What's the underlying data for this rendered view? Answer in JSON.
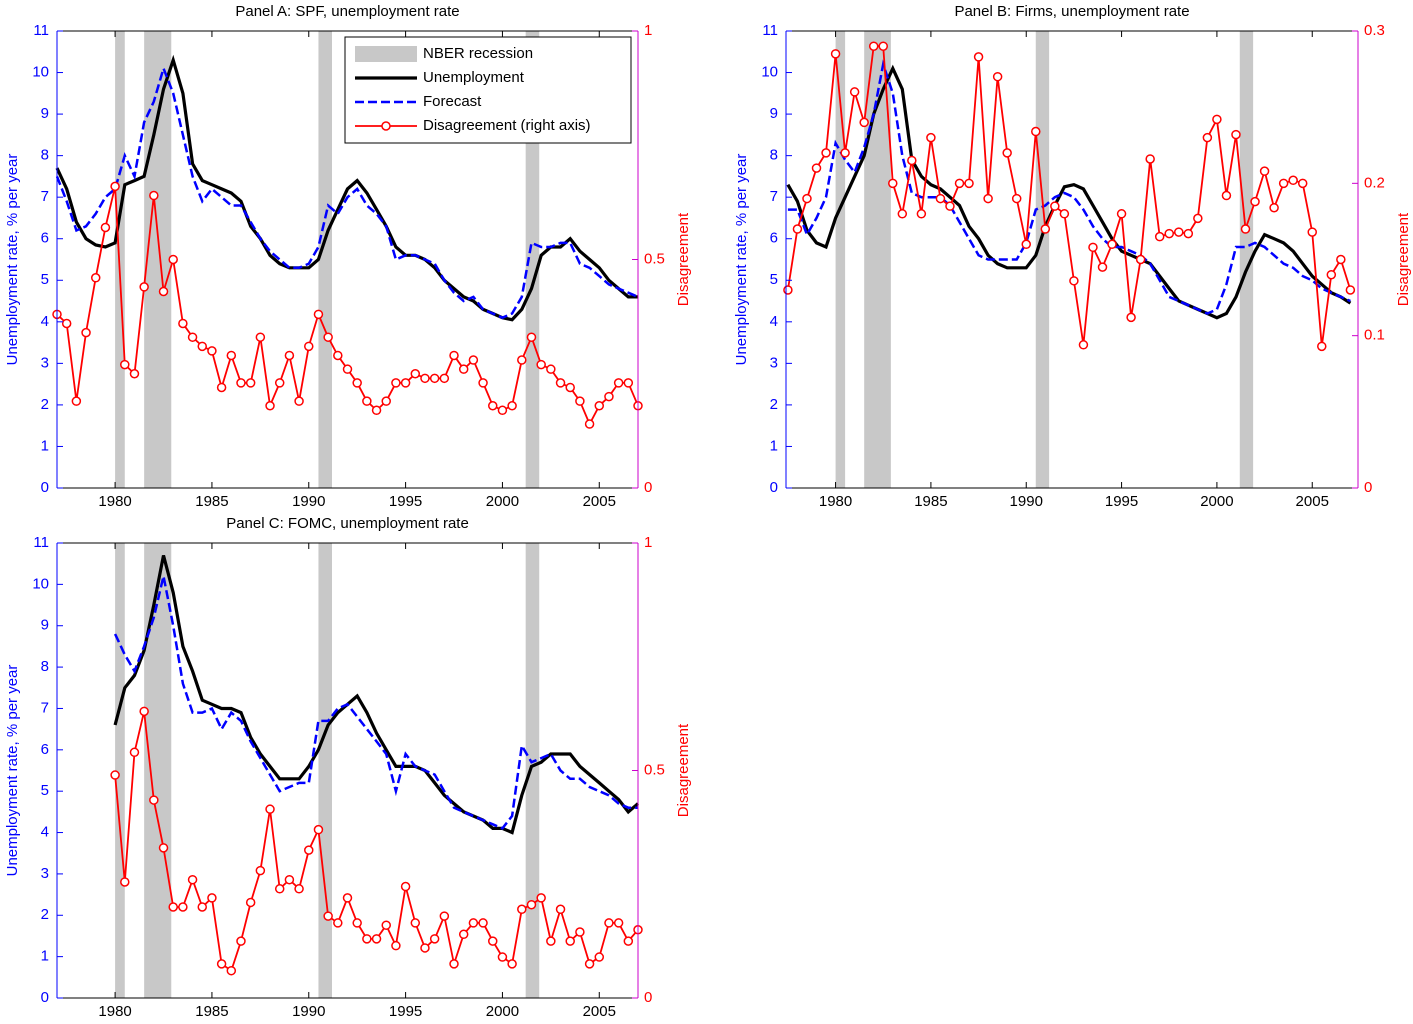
{
  "chart_data": [
    {
      "type": "line",
      "title": "Panel A: SPF, unemployment rate",
      "ylabel": "Unemployment rate, % per year",
      "y2label": "Disagreement",
      "xlim": [
        1977,
        2007
      ],
      "xticks": [
        1980,
        1985,
        1990,
        1995,
        2000,
        2005
      ],
      "ylim": [
        0,
        11
      ],
      "yticks": [
        0,
        1,
        2,
        3,
        4,
        5,
        6,
        7,
        8,
        9,
        10,
        11
      ],
      "y2lim": [
        0,
        1
      ],
      "y2ticks": [
        0,
        0.5,
        1
      ],
      "recession_label": "NBER recession",
      "recession_color": "#c8c8c8",
      "recessions": [
        [
          1980,
          1980.5
        ],
        [
          1981.5,
          1982.9
        ],
        [
          1990.5,
          1991.2
        ],
        [
          2001.2,
          2001.9
        ]
      ],
      "legend": "upper right",
      "x": [
        1977,
        1977.5,
        1978,
        1978.5,
        1979,
        1979.5,
        1980,
        1980.5,
        1981,
        1981.5,
        1982,
        1982.5,
        1983,
        1983.5,
        1984,
        1984.5,
        1985,
        1985.5,
        1986,
        1986.5,
        1987,
        1987.5,
        1988,
        1988.5,
        1989,
        1989.5,
        1990,
        1990.5,
        1991,
        1991.5,
        1992,
        1992.5,
        1993,
        1993.5,
        1994,
        1994.5,
        1995,
        1995.5,
        1996,
        1996.5,
        1997,
        1997.5,
        1998,
        1998.5,
        1999,
        1999.5,
        2000,
        2000.5,
        2001,
        2001.5,
        2002,
        2002.5,
        2003,
        2003.5,
        2004,
        2004.5,
        2005,
        2005.5,
        2006,
        2006.5,
        2007
      ],
      "series": [
        {
          "name": "Unemployment",
          "color": "#000000",
          "linestyle": "solid",
          "axis": "y",
          "values": [
            7.7,
            7.2,
            6.4,
            6.0,
            5.85,
            5.8,
            5.9,
            7.3,
            7.4,
            7.5,
            8.5,
            9.6,
            10.3,
            9.5,
            7.8,
            7.4,
            7.3,
            7.2,
            7.1,
            6.9,
            6.3,
            6.0,
            5.6,
            5.4,
            5.3,
            5.3,
            5.3,
            5.5,
            6.2,
            6.7,
            7.2,
            7.4,
            7.1,
            6.7,
            6.3,
            5.8,
            5.6,
            5.6,
            5.5,
            5.3,
            5.0,
            4.8,
            4.6,
            4.5,
            4.3,
            4.2,
            4.1,
            4.05,
            4.3,
            4.8,
            5.6,
            5.8,
            5.8,
            6.0,
            5.7,
            5.5,
            5.3,
            5.0,
            4.8,
            4.6,
            4.6
          ]
        },
        {
          "name": "Forecast",
          "color": "#0000ff",
          "linestyle": "dashed",
          "axis": "y",
          "values": [
            7.5,
            6.9,
            6.2,
            6.3,
            6.6,
            7.0,
            7.2,
            8.0,
            7.5,
            8.8,
            9.3,
            10.1,
            9.5,
            8.5,
            7.5,
            6.9,
            7.2,
            7.0,
            6.8,
            6.8,
            6.4,
            6.0,
            5.7,
            5.5,
            5.3,
            5.3,
            5.4,
            5.8,
            6.8,
            6.6,
            7.0,
            7.2,
            6.8,
            6.6,
            6.3,
            5.5,
            5.6,
            5.6,
            5.5,
            5.4,
            5.0,
            4.7,
            4.5,
            4.6,
            4.3,
            4.2,
            4.1,
            4.2,
            4.6,
            5.9,
            5.8,
            5.8,
            5.9,
            5.9,
            5.4,
            5.3,
            5.1,
            4.9,
            4.8,
            4.7,
            4.6
          ]
        },
        {
          "name": "Disagreement (right axis)",
          "color": "#ff0000",
          "linestyle": "solid",
          "marker": "circle",
          "axis": "y2",
          "values": [
            0.38,
            0.36,
            0.19,
            0.34,
            0.46,
            0.57,
            0.66,
            0.27,
            0.25,
            0.44,
            0.64,
            0.43,
            0.5,
            0.36,
            0.33,
            0.31,
            0.3,
            0.22,
            0.29,
            0.23,
            0.23,
            0.33,
            0.18,
            0.23,
            0.29,
            0.19,
            0.31,
            0.38,
            0.33,
            0.29,
            0.26,
            0.23,
            0.19,
            0.17,
            0.19,
            0.23,
            0.23,
            0.25,
            0.24,
            0.24,
            0.24,
            0.29,
            0.26,
            0.28,
            0.23,
            0.18,
            0.17,
            0.18,
            0.28,
            0.33,
            0.27,
            0.26,
            0.23,
            0.22,
            0.19,
            0.14,
            0.18,
            0.2,
            0.23,
            0.23,
            0.18
          ]
        }
      ]
    },
    {
      "type": "line",
      "title": "Panel B: Firms, unemployment rate",
      "ylabel": "Unemployment rate, % per year",
      "y2label": "Disagreement",
      "xlim": [
        1977.4,
        2007.4
      ],
      "xticks": [
        1980,
        1985,
        1990,
        1995,
        2000,
        2005
      ],
      "ylim": [
        0,
        11
      ],
      "yticks": [
        0,
        1,
        2,
        3,
        4,
        5,
        6,
        7,
        8,
        9,
        10,
        11
      ],
      "y2lim": [
        0,
        0.3
      ],
      "y2ticks": [
        0,
        0.1,
        0.2,
        0.3
      ],
      "recession_color": "#c8c8c8",
      "recessions": [
        [
          1980,
          1980.5
        ],
        [
          1981.5,
          1982.9
        ],
        [
          1990.5,
          1991.2
        ],
        [
          2001.2,
          2001.9
        ]
      ],
      "x": [
        1977.5,
        1978,
        1978.5,
        1979,
        1979.5,
        1980,
        1980.5,
        1981,
        1981.5,
        1982,
        1982.5,
        1983,
        1983.5,
        1984,
        1984.5,
        1985,
        1985.5,
        1986,
        1986.5,
        1987,
        1987.5,
        1988,
        1988.5,
        1989,
        1989.5,
        1990,
        1990.5,
        1991,
        1991.5,
        1992,
        1992.5,
        1993,
        1993.5,
        1994,
        1994.5,
        1995,
        1995.5,
        1996,
        1996.5,
        1997,
        1997.5,
        1998,
        1998.5,
        1999,
        1999.5,
        2000,
        2000.5,
        2001,
        2001.5,
        2002,
        2002.5,
        2003,
        2003.5,
        2004,
        2004.5,
        2005,
        2005.5,
        2006,
        2006.5,
        2007
      ],
      "series": [
        {
          "color": "#000000",
          "linestyle": "solid",
          "axis": "y",
          "values": [
            7.3,
            6.9,
            6.2,
            5.9,
            5.8,
            6.5,
            7.0,
            7.5,
            8.0,
            9.0,
            9.6,
            10.1,
            9.6,
            7.9,
            7.5,
            7.3,
            7.2,
            7.0,
            6.8,
            6.3,
            6.0,
            5.6,
            5.4,
            5.3,
            5.3,
            5.3,
            5.6,
            6.3,
            6.8,
            7.25,
            7.3,
            7.2,
            6.8,
            6.4,
            6.0,
            5.7,
            5.6,
            5.5,
            5.4,
            5.1,
            4.8,
            4.5,
            4.4,
            4.3,
            4.2,
            4.1,
            4.2,
            4.6,
            5.2,
            5.7,
            6.1,
            6.0,
            5.9,
            5.7,
            5.4,
            5.1,
            4.9,
            4.7,
            4.6,
            4.45
          ]
        },
        {
          "color": "#0000ff",
          "linestyle": "dashed",
          "axis": "y",
          "values": [
            6.7,
            6.7,
            6.1,
            6.5,
            7.0,
            8.3,
            7.9,
            7.6,
            8.2,
            9.0,
            10.2,
            9.5,
            8.0,
            7.1,
            7.0,
            7.0,
            7.0,
            6.8,
            6.4,
            6.0,
            5.6,
            5.5,
            5.5,
            5.5,
            5.5,
            5.9,
            6.7,
            6.8,
            7.0,
            7.1,
            7.0,
            6.7,
            6.3,
            6.0,
            5.8,
            5.8,
            5.7,
            5.6,
            5.4,
            5.0,
            4.6,
            4.5,
            4.4,
            4.3,
            4.2,
            4.3,
            4.9,
            5.8,
            5.8,
            5.9,
            5.8,
            5.6,
            5.4,
            5.3,
            5.1,
            5.0,
            4.8,
            4.7,
            4.6,
            4.5
          ]
        },
        {
          "color": "#ff0000",
          "linestyle": "solid",
          "marker": "circle",
          "axis": "y2",
          "values": [
            0.13,
            0.17,
            0.19,
            0.21,
            0.22,
            0.285,
            0.22,
            0.26,
            0.24,
            0.29,
            0.29,
            0.2,
            0.18,
            0.215,
            0.18,
            0.23,
            0.19,
            0.185,
            0.2,
            0.2,
            0.283,
            0.19,
            0.27,
            0.22,
            0.19,
            0.16,
            0.234,
            0.17,
            0.185,
            0.18,
            0.136,
            0.094,
            0.158,
            0.145,
            0.16,
            0.18,
            0.112,
            0.15,
            0.216,
            0.165,
            0.167,
            0.168,
            0.167,
            0.177,
            0.23,
            0.242,
            0.192,
            0.232,
            0.17,
            0.188,
            0.208,
            0.184,
            0.2,
            0.202,
            0.2,
            0.168,
            0.093,
            0.14,
            0.15,
            0.13
          ]
        }
      ]
    },
    {
      "type": "line",
      "title": "Panel C: FOMC, unemployment rate",
      "ylabel": "Unemployment rate, % per year",
      "y2label": "Disagreement",
      "xlim": [
        1977,
        2007
      ],
      "xticks": [
        1980,
        1985,
        1990,
        1995,
        2000,
        2005
      ],
      "ylim": [
        0,
        11
      ],
      "yticks": [
        0,
        1,
        2,
        3,
        4,
        5,
        6,
        7,
        8,
        9,
        10,
        11
      ],
      "y2lim": [
        0,
        1
      ],
      "y2ticks": [
        0,
        0.5,
        1
      ],
      "recession_color": "#c8c8c8",
      "recessions": [
        [
          1980,
          1980.5
        ],
        [
          1981.5,
          1982.9
        ],
        [
          1990.5,
          1991.2
        ],
        [
          2001.2,
          2001.9
        ]
      ],
      "x": [
        1980,
        1980.5,
        1981,
        1981.5,
        1982,
        1982.5,
        1983,
        1983.5,
        1984,
        1984.5,
        1985,
        1985.5,
        1986,
        1986.5,
        1987,
        1987.5,
        1988,
        1988.5,
        1989,
        1989.5,
        1990,
        1990.5,
        1991,
        1991.5,
        1992,
        1992.5,
        1993,
        1993.5,
        1994,
        1994.5,
        1995,
        1995.5,
        1996,
        1996.5,
        1997,
        1997.5,
        1998,
        1998.5,
        1999,
        1999.5,
        2000,
        2000.5,
        2001,
        2001.5,
        2002,
        2002.5,
        2003,
        2003.5,
        2004,
        2004.5,
        2005,
        2005.5,
        2006,
        2006.5,
        2007
      ],
      "series": [
        {
          "color": "#000000",
          "linestyle": "solid",
          "axis": "y",
          "values": [
            6.6,
            7.5,
            7.8,
            8.4,
            9.5,
            10.7,
            9.8,
            8.5,
            7.9,
            7.2,
            7.1,
            7.0,
            7.0,
            6.9,
            6.3,
            5.9,
            5.6,
            5.3,
            5.3,
            5.3,
            5.6,
            6.0,
            6.6,
            6.9,
            7.1,
            7.3,
            6.9,
            6.4,
            6.0,
            5.6,
            5.6,
            5.6,
            5.5,
            5.2,
            4.9,
            4.7,
            4.5,
            4.4,
            4.3,
            4.1,
            4.1,
            4.0,
            4.9,
            5.6,
            5.7,
            5.9,
            5.9,
            5.9,
            5.6,
            5.4,
            5.2,
            5.0,
            4.8,
            4.5,
            4.7
          ]
        },
        {
          "color": "#0000ff",
          "linestyle": "dashed",
          "axis": "y",
          "values": [
            8.8,
            8.3,
            7.9,
            8.5,
            9.2,
            10.2,
            9.0,
            7.6,
            6.9,
            6.9,
            7.0,
            6.5,
            6.9,
            6.7,
            6.2,
            5.8,
            5.4,
            5.0,
            5.1,
            5.2,
            5.2,
            6.7,
            6.7,
            7.0,
            7.1,
            6.8,
            6.5,
            6.2,
            5.9,
            5.0,
            5.9,
            5.6,
            5.5,
            5.4,
            5.0,
            4.6,
            4.5,
            4.4,
            4.3,
            4.2,
            4.1,
            4.4,
            6.1,
            5.7,
            5.8,
            5.9,
            5.5,
            5.3,
            5.3,
            5.1,
            5.0,
            4.9,
            4.7,
            4.6,
            4.6
          ]
        },
        {
          "color": "#ff0000",
          "linestyle": "solid",
          "marker": "circle",
          "axis": "y2",
          "values": [
            0.49,
            0.255,
            0.54,
            0.63,
            0.435,
            0.33,
            0.2,
            0.2,
            0.26,
            0.2,
            0.22,
            0.075,
            0.06,
            0.125,
            0.21,
            0.28,
            0.415,
            0.24,
            0.26,
            0.24,
            0.325,
            0.37,
            0.18,
            0.165,
            0.22,
            0.165,
            0.13,
            0.13,
            0.16,
            0.115,
            0.245,
            0.165,
            0.11,
            0.13,
            0.18,
            0.075,
            0.14,
            0.165,
            0.165,
            0.125,
            0.09,
            0.075,
            0.195,
            0.205,
            0.22,
            0.125,
            0.195,
            0.125,
            0.145,
            0.075,
            0.09,
            0.165,
            0.165,
            0.125,
            0.15
          ]
        }
      ]
    }
  ]
}
